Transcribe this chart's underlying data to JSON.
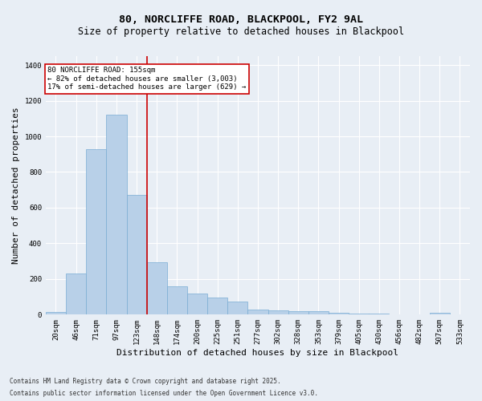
{
  "title1": "80, NORCLIFFE ROAD, BLACKPOOL, FY2 9AL",
  "title2": "Size of property relative to detached houses in Blackpool",
  "xlabel": "Distribution of detached houses by size in Blackpool",
  "ylabel": "Number of detached properties",
  "categories": [
    "20sqm",
    "46sqm",
    "71sqm",
    "97sqm",
    "123sqm",
    "148sqm",
    "174sqm",
    "200sqm",
    "225sqm",
    "251sqm",
    "277sqm",
    "302sqm",
    "328sqm",
    "353sqm",
    "379sqm",
    "405sqm",
    "430sqm",
    "456sqm",
    "482sqm",
    "507sqm",
    "533sqm"
  ],
  "values": [
    15,
    230,
    930,
    1120,
    670,
    295,
    160,
    120,
    95,
    75,
    28,
    22,
    18,
    18,
    12,
    5,
    4,
    3,
    2,
    10,
    2
  ],
  "bar_color": "#b8d0e8",
  "bar_edge_color": "#7aadd4",
  "ref_line_color": "#cc0000",
  "annotation_box_color": "#cc0000",
  "annotation_text": "80 NORCLIFFE ROAD: 155sqm\n← 82% of detached houses are smaller (3,003)\n17% of semi-detached houses are larger (629) →",
  "ylim": [
    0,
    1450
  ],
  "yticks": [
    0,
    200,
    400,
    600,
    800,
    1000,
    1200,
    1400
  ],
  "bg_color": "#e8eef5",
  "grid_color": "#ffffff",
  "footer_line1": "Contains HM Land Registry data © Crown copyright and database right 2025.",
  "footer_line2": "Contains public sector information licensed under the Open Government Licence v3.0.",
  "title_fontsize": 9.5,
  "subtitle_fontsize": 8.5,
  "tick_fontsize": 6.5,
  "label_fontsize": 8,
  "footer_fontsize": 5.5,
  "annot_fontsize": 6.5
}
